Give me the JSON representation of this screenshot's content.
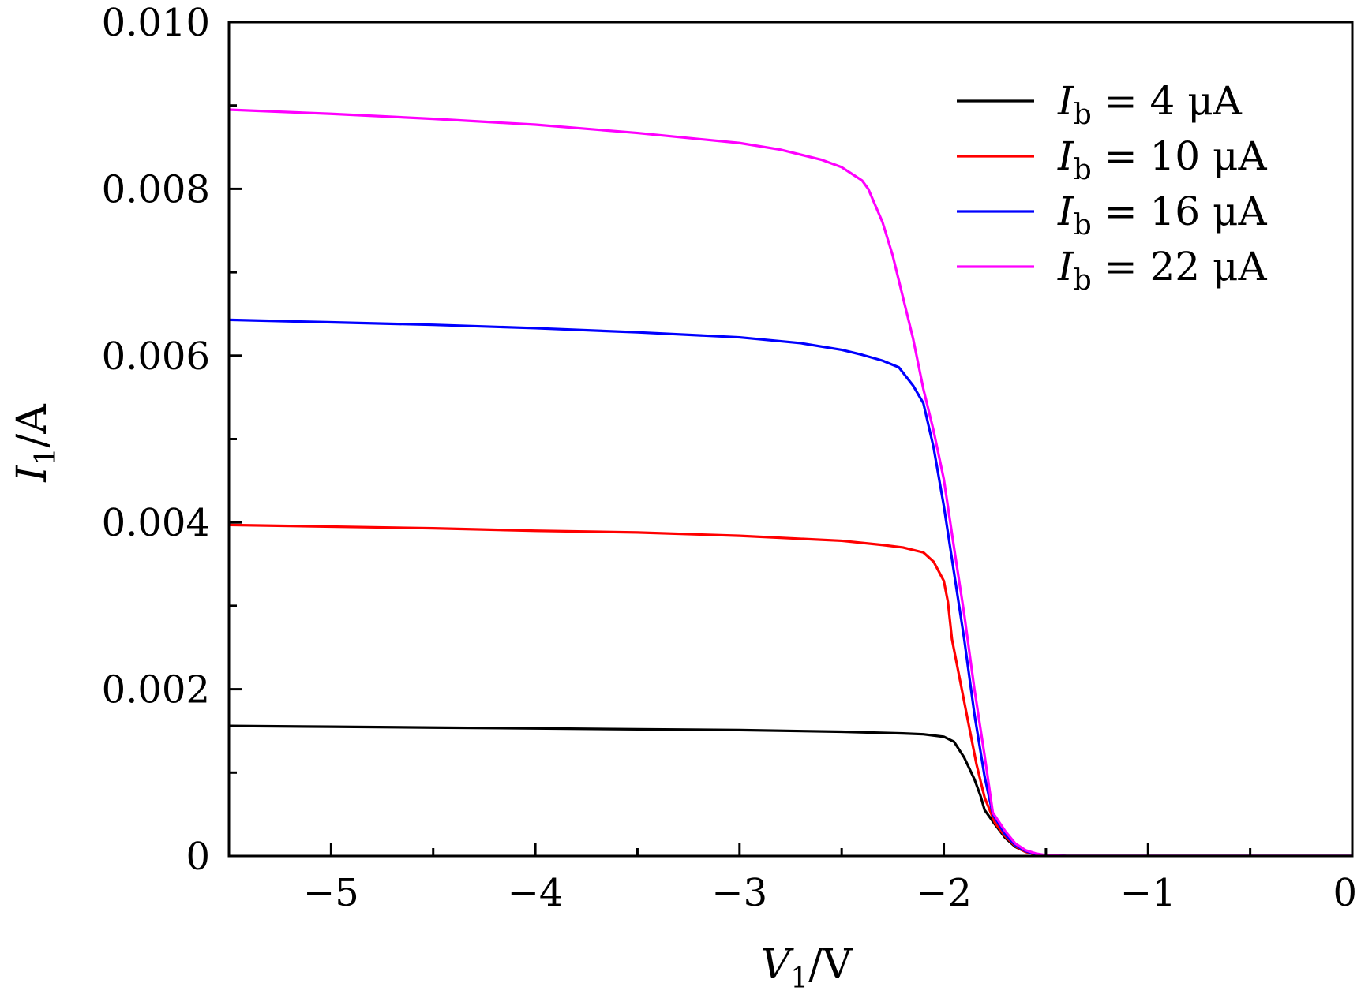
{
  "chart_data": {
    "type": "line",
    "title": "",
    "xlabel": {
      "main": "V",
      "sub": "1",
      "rest": "/V"
    },
    "ylabel": {
      "main": "I",
      "sub": "1",
      "rest": "/A"
    },
    "xlim": [
      -5.5,
      0
    ],
    "ylim": [
      0,
      0.01
    ],
    "x_ticks": [
      {
        "value": -5,
        "label": "−5"
      },
      {
        "value": -4,
        "label": "−4"
      },
      {
        "value": -3,
        "label": "−3"
      },
      {
        "value": -2,
        "label": "−2"
      },
      {
        "value": -1,
        "label": "−1"
      },
      {
        "value": 0,
        "label": "0"
      }
    ],
    "x_minor_ticks": [
      -4.5,
      -3.5,
      -2.5,
      -1.5,
      -0.5
    ],
    "y_ticks": [
      {
        "value": 0,
        "label": "0"
      },
      {
        "value": 0.002,
        "label": "0.002"
      },
      {
        "value": 0.004,
        "label": "0.004"
      },
      {
        "value": 0.006,
        "label": "0.006"
      },
      {
        "value": 0.008,
        "label": "0.008"
      },
      {
        "value": 0.01,
        "label": "0.010"
      }
    ],
    "y_minor_ticks": [
      0.001,
      0.003,
      0.005,
      0.007,
      0.009
    ],
    "grid": false,
    "legend_position": "top-right",
    "series": [
      {
        "name": "I_b = 4 μA",
        "legend": {
          "main": "I",
          "sub": "b",
          "rest": " = 4 μA"
        },
        "color": "#000000",
        "points": [
          [
            -5.5,
            0.00156
          ],
          [
            -5.0,
            0.00155
          ],
          [
            -4.5,
            0.00154
          ],
          [
            -4.0,
            0.00153
          ],
          [
            -3.5,
            0.00152
          ],
          [
            -3.0,
            0.00151
          ],
          [
            -2.5,
            0.00149
          ],
          [
            -2.2,
            0.00147
          ],
          [
            -2.1,
            0.00146
          ],
          [
            -2.0,
            0.00143
          ],
          [
            -1.95,
            0.00137
          ],
          [
            -1.9,
            0.00118
          ],
          [
            -1.85,
            0.00092
          ],
          [
            -1.82,
            0.00072
          ],
          [
            -1.8,
            0.00055
          ],
          [
            -1.75,
            0.00038
          ],
          [
            -1.7,
            0.00022
          ],
          [
            -1.65,
            0.00011
          ],
          [
            -1.6,
            5e-05
          ],
          [
            -1.55,
            2e-05
          ],
          [
            -1.5,
            1e-05
          ],
          [
            -1.4,
            0.0
          ],
          [
            -1.0,
            0.0
          ],
          [
            0.0,
            0.0
          ]
        ]
      },
      {
        "name": "I_b = 10 μA",
        "legend": {
          "main": "I",
          "sub": "b",
          "rest": " = 10 μA"
        },
        "color": "#ff0000",
        "points": [
          [
            -5.5,
            0.00397
          ],
          [
            -5.0,
            0.00395
          ],
          [
            -4.5,
            0.00393
          ],
          [
            -4.0,
            0.0039
          ],
          [
            -3.5,
            0.00388
          ],
          [
            -3.0,
            0.00384
          ],
          [
            -2.5,
            0.00378
          ],
          [
            -2.3,
            0.00373
          ],
          [
            -2.2,
            0.0037
          ],
          [
            -2.1,
            0.00364
          ],
          [
            -2.05,
            0.00353
          ],
          [
            -2.0,
            0.0033
          ],
          [
            -1.98,
            0.00305
          ],
          [
            -1.96,
            0.0026
          ],
          [
            -1.92,
            0.0021
          ],
          [
            -1.88,
            0.0016
          ],
          [
            -1.84,
            0.0011
          ],
          [
            -1.8,
            0.0007
          ],
          [
            -1.75,
            0.0004
          ],
          [
            -1.7,
            0.00024
          ],
          [
            -1.65,
            0.00012
          ],
          [
            -1.6,
            5e-05
          ],
          [
            -1.55,
            2e-05
          ],
          [
            -1.5,
            1e-05
          ],
          [
            -1.4,
            0.0
          ],
          [
            -1.0,
            0.0
          ],
          [
            0.0,
            0.0
          ]
        ]
      },
      {
        "name": "I_b = 16 μA",
        "legend": {
          "main": "I",
          "sub": "b",
          "rest": " = 16 μA"
        },
        "color": "#0000ff",
        "points": [
          [
            -5.5,
            0.00643
          ],
          [
            -5.0,
            0.0064
          ],
          [
            -4.5,
            0.00637
          ],
          [
            -4.0,
            0.00633
          ],
          [
            -3.5,
            0.00628
          ],
          [
            -3.0,
            0.00622
          ],
          [
            -2.7,
            0.00615
          ],
          [
            -2.5,
            0.00607
          ],
          [
            -2.4,
            0.00601
          ],
          [
            -2.3,
            0.00594
          ],
          [
            -2.22,
            0.00586
          ],
          [
            -2.15,
            0.00564
          ],
          [
            -2.1,
            0.00543
          ],
          [
            -2.05,
            0.0049
          ],
          [
            -2.0,
            0.0042
          ],
          [
            -1.95,
            0.0034
          ],
          [
            -1.9,
            0.0026
          ],
          [
            -1.85,
            0.0017
          ],
          [
            -1.8,
            0.00095
          ],
          [
            -1.76,
            0.0005
          ],
          [
            -1.7,
            0.00026
          ],
          [
            -1.65,
            0.00013
          ],
          [
            -1.6,
            6e-05
          ],
          [
            -1.55,
            2e-05
          ],
          [
            -1.5,
            1e-05
          ],
          [
            -1.4,
            0.0
          ],
          [
            -1.0,
            0.0
          ],
          [
            0.0,
            0.0
          ]
        ]
      },
      {
        "name": "I_b = 22 μA",
        "legend": {
          "main": "I",
          "sub": "b",
          "rest": " = 22 μA"
        },
        "color": "#ff00ff",
        "points": [
          [
            -5.5,
            0.00895
          ],
          [
            -5.0,
            0.0089
          ],
          [
            -4.5,
            0.00884
          ],
          [
            -4.0,
            0.00877
          ],
          [
            -3.5,
            0.00867
          ],
          [
            -3.0,
            0.00855
          ],
          [
            -2.8,
            0.00847
          ],
          [
            -2.6,
            0.00835
          ],
          [
            -2.5,
            0.00826
          ],
          [
            -2.45,
            0.00818
          ],
          [
            -2.4,
            0.0081
          ],
          [
            -2.37,
            0.008
          ],
          [
            -2.3,
            0.0076
          ],
          [
            -2.25,
            0.0072
          ],
          [
            -2.2,
            0.0067
          ],
          [
            -2.15,
            0.0062
          ],
          [
            -2.1,
            0.0056
          ],
          [
            -2.05,
            0.0051
          ],
          [
            -2.0,
            0.00452
          ],
          [
            -1.95,
            0.0037
          ],
          [
            -1.9,
            0.0029
          ],
          [
            -1.85,
            0.002
          ],
          [
            -1.8,
            0.0012
          ],
          [
            -1.76,
            0.00052
          ],
          [
            -1.7,
            0.0003
          ],
          [
            -1.65,
            0.00015
          ],
          [
            -1.6,
            7e-05
          ],
          [
            -1.55,
            3e-05
          ],
          [
            -1.5,
            1e-05
          ],
          [
            -1.4,
            0.0
          ],
          [
            -1.0,
            0.0
          ],
          [
            0.0,
            0.0
          ]
        ]
      }
    ]
  }
}
